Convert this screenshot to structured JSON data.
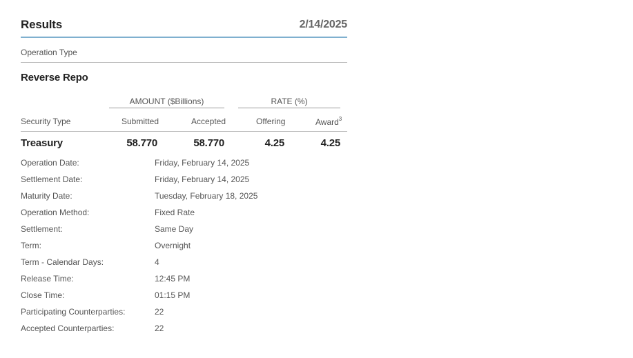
{
  "results": {
    "title": "Results",
    "date": "2/14/2025"
  },
  "operation_type": {
    "label": "Operation Type",
    "value": "Reverse Repo"
  },
  "table": {
    "group_headers": {
      "amount": "AMOUNT ($Billions)",
      "rate": "RATE (%)"
    },
    "columns": {
      "security_type": "Security Type",
      "submitted": "Submitted",
      "accepted": "Accepted",
      "offering": "Offering",
      "award": "Award",
      "award_footnote": "3"
    },
    "row": {
      "security_type": "Treasury",
      "submitted": "58.770",
      "accepted": "58.770",
      "offering": "4.25",
      "award": "4.25"
    }
  },
  "details": [
    {
      "label": "Operation Date:",
      "value": "Friday, February 14, 2025"
    },
    {
      "label": "Settlement Date:",
      "value": "Friday, February 14, 2025"
    },
    {
      "label": "Maturity Date:",
      "value": "Tuesday, February 18, 2025"
    },
    {
      "label": "Operation Method:",
      "value": "Fixed Rate"
    },
    {
      "label": "Settlement:",
      "value": "Same Day"
    },
    {
      "label": "Term:",
      "value": "Overnight"
    },
    {
      "label": "Term - Calendar Days:",
      "value": "4"
    },
    {
      "label": "Release Time:",
      "value": "12:45 PM"
    },
    {
      "label": "Close Time:",
      "value": "01:15 PM"
    },
    {
      "label": "Participating Counterparties:",
      "value": "22"
    },
    {
      "label": "Accepted Counterparties:",
      "value": "22"
    }
  ]
}
